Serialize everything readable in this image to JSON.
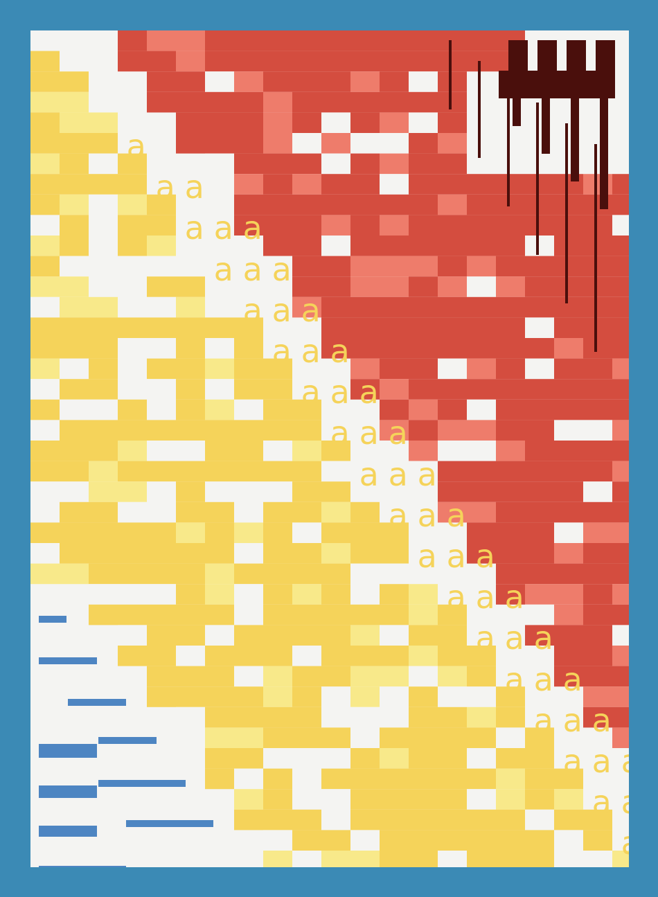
{
  "artwork": {
    "glyph_text": "a",
    "palette": {
      "frame": "#3b8ab5",
      "paper": "#f4f4f2",
      "red": "#d44d3f",
      "salmon": "#ee7c6b",
      "yellow": "#f5d35a",
      "pale_yellow": "#f8e98a",
      "maroon": "#4a0f0c",
      "blue": "#4d85c2"
    }
  }
}
